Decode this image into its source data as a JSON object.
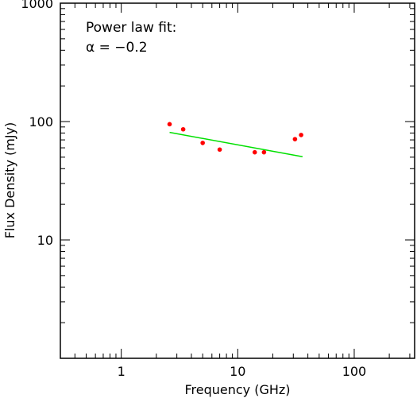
{
  "chart_data": {
    "type": "scatter",
    "xlabel": "Frequency (GHz)",
    "ylabel": "Flux Density (mJy)",
    "x_scale": "log",
    "y_scale": "log",
    "xlim": [
      0.3,
      330
    ],
    "ylim": [
      1,
      1000
    ],
    "x_tick_labels": [
      "1",
      "10",
      "100"
    ],
    "y_tick_labels": [
      "10",
      "100",
      "1000"
    ],
    "grid": false,
    "annotation": {
      "line1": "Power law fit:",
      "line2": "α = −0.2"
    },
    "series": [
      {
        "type": "scatter",
        "color": "#ff0000",
        "points": [
          {
            "x": 2.6,
            "y": 95
          },
          {
            "x": 3.4,
            "y": 86
          },
          {
            "x": 5.0,
            "y": 66
          },
          {
            "x": 7.0,
            "y": 58
          },
          {
            "x": 14.0,
            "y": 55
          },
          {
            "x": 16.8,
            "y": 55
          },
          {
            "x": 31.0,
            "y": 71
          },
          {
            "x": 35.0,
            "y": 77
          }
        ]
      },
      {
        "type": "line",
        "color": "#00e000",
        "points": [
          {
            "x": 2.6,
            "y": 81
          },
          {
            "x": 36.0,
            "y": 50.5
          }
        ]
      }
    ]
  }
}
